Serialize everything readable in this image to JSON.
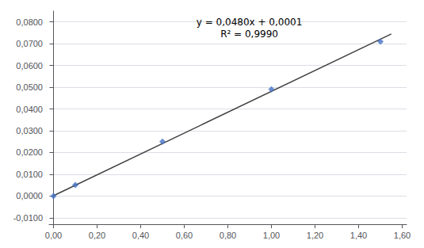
{
  "chart_data": {
    "type": "scatter",
    "annotation": "y = 0,0480x + 0,0001\nR² = 0,9990",
    "series": [
      {
        "type": "scatter",
        "x": [
          0.0,
          0.1,
          0.5,
          1.0,
          1.5
        ],
        "values": [
          -0.0001,
          0.005,
          0.025,
          0.049,
          0.071
        ],
        "color": "#4472C4",
        "marker": "diamond"
      },
      {
        "type": "line",
        "x": [
          0.0,
          1.55
        ],
        "values": [
          0.0001,
          0.0745
        ],
        "color": "#404040",
        "line_style": "solid"
      }
    ],
    "xlim": [
      -0.02,
      1.62
    ],
    "ylim": [
      -0.013,
      0.085
    ],
    "xticks": [
      {
        "value": 0.0,
        "label": "0,00"
      },
      {
        "value": 0.2,
        "label": "0,20"
      },
      {
        "value": 0.4,
        "label": "0,40"
      },
      {
        "value": 0.6,
        "label": "0,60"
      },
      {
        "value": 0.8,
        "label": "0,80"
      },
      {
        "value": 1.0,
        "label": "1,00"
      },
      {
        "value": 1.2,
        "label": "1,20"
      },
      {
        "value": 1.4,
        "label": "1,40"
      },
      {
        "value": 1.6,
        "label": "1,60"
      }
    ],
    "yticks": [
      {
        "value": -0.01,
        "label": "-0,0100"
      },
      {
        "value": 0.0,
        "label": "0,0000"
      },
      {
        "value": 0.01,
        "label": "0,0100"
      },
      {
        "value": 0.02,
        "label": "0,0200"
      },
      {
        "value": 0.03,
        "label": "0,0300"
      },
      {
        "value": 0.04,
        "label": "0,0400"
      },
      {
        "value": 0.05,
        "label": "0,0500"
      },
      {
        "value": 0.06,
        "label": "0,0600"
      },
      {
        "value": 0.07,
        "label": "0,0700"
      },
      {
        "value": 0.08,
        "label": "0,0800"
      }
    ],
    "grid": "y"
  }
}
